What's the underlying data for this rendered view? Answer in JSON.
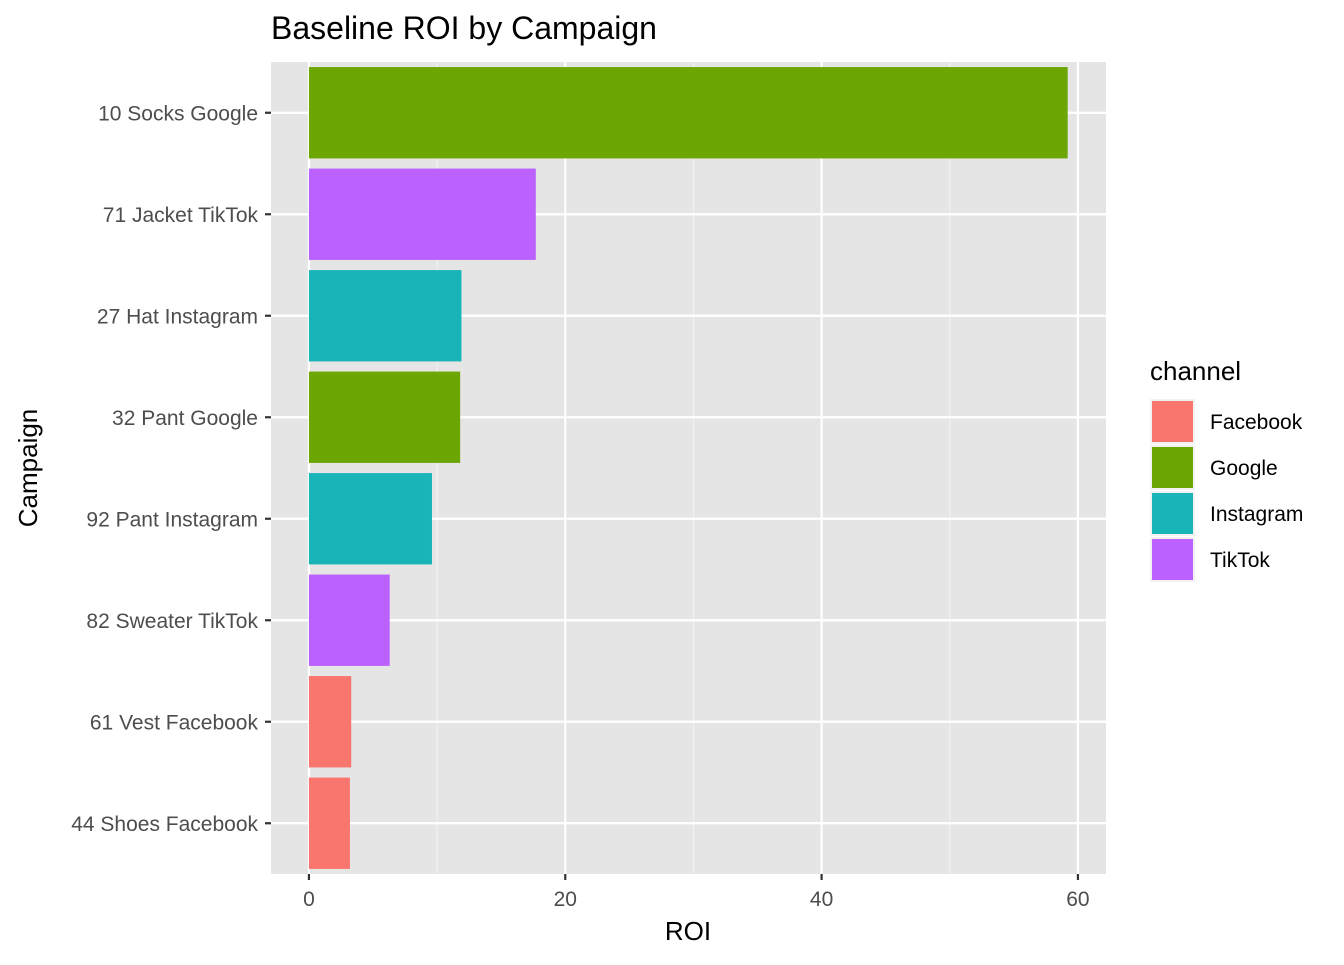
{
  "chart_data": {
    "type": "bar",
    "orientation": "horizontal",
    "title": "Baseline ROI by Campaign",
    "xlabel": "ROI",
    "ylabel": "Campaign",
    "xlim": [
      -2.96,
      62.19
    ],
    "xticks": [
      0,
      20,
      40,
      60
    ],
    "xminor": [
      10,
      30,
      50
    ],
    "grid": true,
    "legend_position": "right",
    "legend": {
      "title": "channel",
      "entries": [
        {
          "label": "Facebook",
          "color": "#F8766D"
        },
        {
          "label": "Google",
          "color": "#7CAE00"
        },
        {
          "label": "Instagram",
          "color": "#00BFC4"
        },
        {
          "label": "TikTok",
          "color": "#C77CFF"
        }
      ]
    },
    "categories": [
      "10 Socks Google",
      "71 Jacket TikTok",
      "27 Hat Instagram",
      "32 Pant Google",
      "92 Pant Instagram",
      "82 Sweater TikTok",
      "61 Vest Facebook",
      "44 Shoes Facebook"
    ],
    "values": [
      59.2,
      17.7,
      11.9,
      11.8,
      9.6,
      6.3,
      3.3,
      3.2
    ],
    "channels": [
      "Google",
      "TikTok",
      "Instagram",
      "Google",
      "Instagram",
      "TikTok",
      "Facebook",
      "Facebook"
    ]
  },
  "colors": {
    "panel_background": "#E5E5E5",
    "grid_major": "#FFFFFF",
    "tick_text": "#4D4D4D",
    "tick_mark": "#333333",
    "Facebook": "#F8766D",
    "Google": "#6BA602",
    "Instagram": "#19B4B8",
    "TikTok": "#BA61FF"
  }
}
